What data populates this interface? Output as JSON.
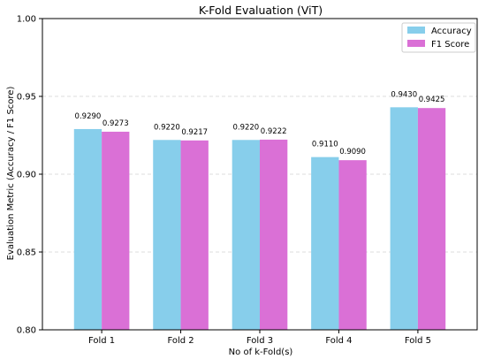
{
  "chart_data": {
    "type": "bar",
    "title": "K-Fold Evaluation (ViT)",
    "xlabel": "No of k-Fold(s)",
    "ylabel": "Evaluation Metric (Accuracy / F1 Score)",
    "categories": [
      "Fold 1",
      "Fold 2",
      "Fold 3",
      "Fold 4",
      "Fold 5"
    ],
    "series": [
      {
        "name": "Accuracy",
        "color": "#87ceeb",
        "values": [
          0.929,
          0.922,
          0.922,
          0.911,
          0.943
        ],
        "labels": [
          "0.9290",
          "0.9220",
          "0.9220",
          "0.9110",
          "0.9430"
        ]
      },
      {
        "name": "F1 Score",
        "color": "#da70d6",
        "values": [
          0.9273,
          0.9217,
          0.9222,
          0.909,
          0.9425
        ],
        "labels": [
          "0.9273",
          "0.9217",
          "0.9222",
          "0.9090",
          "0.9425"
        ]
      }
    ],
    "ylim": [
      0.8,
      1.0
    ],
    "yticks": [
      0.8,
      0.85,
      0.9,
      0.95,
      1.0
    ],
    "ytick_labels": [
      "0.80",
      "0.85",
      "0.90",
      "0.95",
      "1.00"
    ],
    "grid": "y-dashed",
    "legend": "top-right"
  }
}
